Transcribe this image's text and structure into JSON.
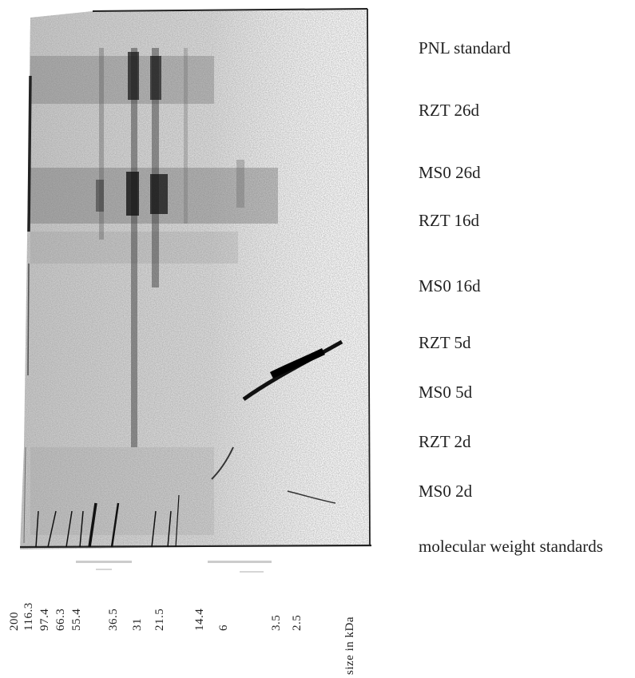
{
  "lanes": [
    "PNL standard",
    "RZT 26d",
    "MS0 26d",
    "RZT 16d",
    "MS0 16d",
    "RZT 5d",
    "MS0 5d",
    "RZT 2d",
    "MS0 2d",
    "molecular weight standards"
  ],
  "mw_markers": [
    "200",
    "116.3",
    "97.4",
    "66.3",
    "55.4",
    "36.5",
    "31",
    "21.5",
    "14.4",
    "6",
    "3.5",
    "2.5"
  ],
  "axis_unit": "size in kDa"
}
